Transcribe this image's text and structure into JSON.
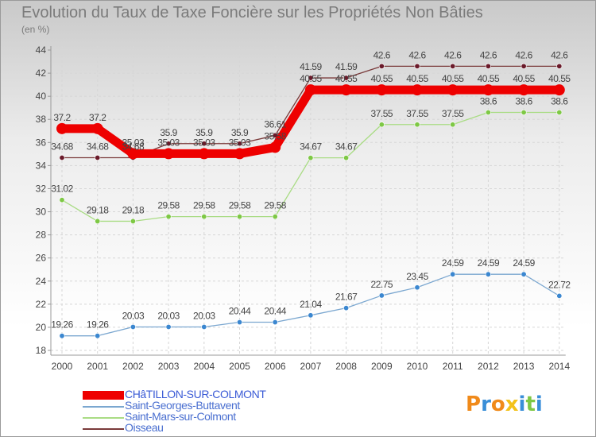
{
  "title": "Evolution du Taux de Taxe Foncière sur les Propriétés Non Bâties",
  "subtitle": "(en %)",
  "chart_data": {
    "type": "line",
    "title": "Evolution du Taux de Taxe Foncière sur les Propriétés Non Bâties",
    "ylabel": "(en %)",
    "xlabel": "",
    "ylim": [
      18,
      44
    ],
    "grid": true,
    "legend_position": "bottom-left",
    "x": [
      "2000",
      "2001",
      "2002",
      "2003",
      "2004",
      "2005",
      "2006",
      "2007",
      "2008",
      "2009",
      "2010",
      "2011",
      "2012",
      "2013",
      "2014"
    ],
    "y_ticks": [
      "18",
      "20",
      "22",
      "24",
      "26",
      "28",
      "30",
      "32",
      "34",
      "36",
      "38",
      "40",
      "42",
      "44"
    ],
    "series": [
      {
        "name": "CHâTILLON-SUR-COLMONT",
        "color": "#ee0000",
        "marker": "#ee0000",
        "values": [
          37.2,
          37.2,
          35.03,
          35.03,
          35.03,
          35.03,
          35.58,
          40.55,
          40.55,
          40.55,
          40.55,
          40.55,
          40.55,
          40.55,
          40.55
        ],
        "labels": [
          "37.2",
          "37.2",
          "35.03",
          "35.03",
          "35.03",
          "35.03",
          "35.58",
          "40.55",
          "40.55",
          "40.55",
          "40.55",
          "40.55",
          "40.55",
          "40.55",
          "40.55"
        ]
      },
      {
        "name": "Saint-Georges-Buttavent",
        "color": "#7ba7d0",
        "marker": "#3b87d0",
        "values": [
          19.26,
          19.26,
          20.03,
          20.03,
          20.03,
          20.44,
          20.44,
          21.04,
          21.67,
          22.75,
          23.45,
          24.59,
          24.59,
          24.59,
          22.72
        ],
        "labels": [
          "19.26",
          "19.26",
          "20.03",
          "20.03",
          "20.03",
          "20.44",
          "20.44",
          "21.04",
          "21.67",
          "22.75",
          "23.45",
          "24.59",
          "24.59",
          "24.59",
          "22.72"
        ]
      },
      {
        "name": "Saint-Mars-sur-Colmont",
        "color": "#a9dc84",
        "marker": "#7ec845",
        "values": [
          31.02,
          29.18,
          29.18,
          29.58,
          29.58,
          29.58,
          29.58,
          34.67,
          34.67,
          37.55,
          37.55,
          37.55,
          38.6,
          38.6,
          38.6
        ],
        "labels": [
          "31.02",
          "29.18",
          "29.18",
          "29.58",
          "29.58",
          "29.58",
          "29.58",
          "34.67",
          "34.67",
          "37.55",
          "37.55",
          "37.55",
          "38.6",
          "38.6",
          "38.6"
        ]
      },
      {
        "name": "Oisseau",
        "color": "#7a3a3a",
        "marker": "#6a1a2a",
        "values": [
          34.68,
          34.68,
          34.68,
          35.9,
          35.9,
          35.9,
          36.61,
          41.59,
          41.59,
          42.6,
          42.6,
          42.6,
          42.6,
          42.6,
          42.6
        ],
        "labels": [
          "34.68",
          "34.68",
          "34.68",
          "35.9",
          "35.9",
          "35.9",
          "36.61",
          "41.59",
          "41.59",
          "42.6",
          "42.6",
          "42.6",
          "42.6",
          "42.6",
          "42.6"
        ]
      }
    ]
  },
  "logo": {
    "letters": [
      "P",
      "r",
      "o",
      "x",
      "i",
      "t",
      "i"
    ],
    "colors": [
      "#f08a1a",
      "#3a8fd8",
      "#f08a1a",
      "#f3c21a",
      "#3a8fd8",
      "#7ec845",
      "#3a8fd8"
    ]
  }
}
